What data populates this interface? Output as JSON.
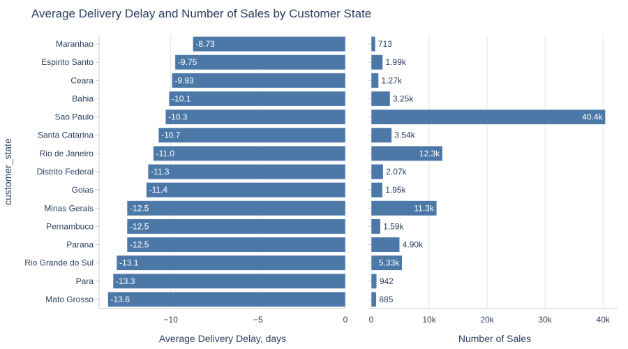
{
  "chart_data": {
    "type": "bar",
    "orientation": "horizontal",
    "title": "Average Delivery Delay and Number of Sales by Customer State",
    "ylabel": "customer_state",
    "categories": [
      "Maranhao",
      "Espirito Santo",
      "Ceara",
      "Bahia",
      "Sao Paulo",
      "Santa Catarina",
      "Rio de Janeiro",
      "Distrito Federal",
      "Goias",
      "Minas Gerais",
      "Pernambuco",
      "Parana",
      "Rio Grande do Sul",
      "Para",
      "Mato Grosso"
    ],
    "color": "#4c78a8",
    "panels": [
      {
        "name": "delay",
        "xlabel": "Average Delivery Delay, days",
        "xlim": [
          -14.1,
          0
        ],
        "ticks": [
          -10,
          -5,
          0
        ],
        "tick_labels": [
          "−10",
          "−5",
          "0"
        ],
        "values": [
          -8.73,
          -9.75,
          -9.93,
          -10.1,
          -10.3,
          -10.7,
          -11.0,
          -11.3,
          -11.4,
          -12.5,
          -12.5,
          -12.5,
          -13.1,
          -13.3,
          -13.6
        ],
        "labels": [
          "-8.73",
          "-9.75",
          "-9.93",
          "-10.1",
          "-10.3",
          "-10.7",
          "-11.0",
          "-11.3",
          "-11.4",
          "-12.5",
          "-12.5",
          "-12.5",
          "-13.1",
          "-13.3",
          "-13.6"
        ]
      },
      {
        "name": "sales",
        "xlabel": "Number of Sales",
        "xlim": [
          0,
          42500
        ],
        "ticks": [
          0,
          10000,
          20000,
          30000,
          40000
        ],
        "tick_labels": [
          "0",
          "10k",
          "20k",
          "30k",
          "40k"
        ],
        "values": [
          713,
          1990,
          1270,
          3250,
          40400,
          3540,
          12300,
          2070,
          1950,
          11300,
          1590,
          4900,
          5330,
          942,
          885
        ],
        "labels": [
          "713",
          "1.99k",
          "1.27k",
          "3.25k",
          "40.4k",
          "3.54k",
          "12.3k",
          "2.07k",
          "1.95k",
          "11.3k",
          "1.59k",
          "4.90k",
          "5.33k",
          "942",
          "885"
        ]
      }
    ]
  }
}
